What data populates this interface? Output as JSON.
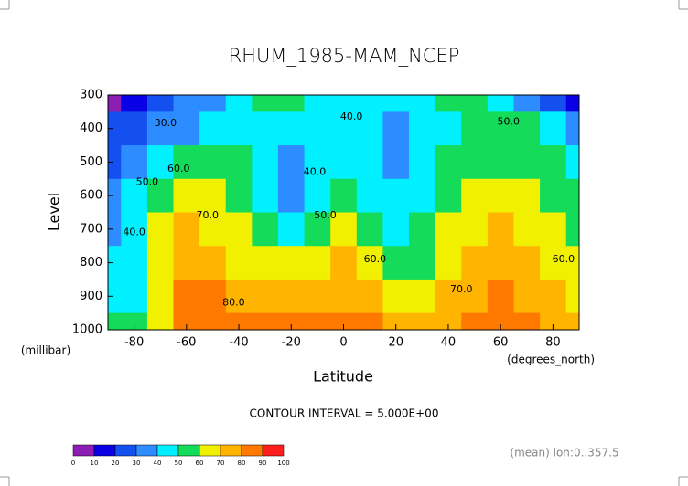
{
  "chart_data": {
    "type": "contour",
    "title": "RHUM_1985-MAM_NCEP",
    "x_label": "Latitude",
    "x_units": "(degrees_north)",
    "y_label": "Level",
    "y_units": "(millibar)",
    "x": [
      -90,
      -80,
      -70,
      -60,
      -50,
      -40,
      -30,
      -20,
      -10,
      0,
      10,
      20,
      30,
      40,
      50,
      60,
      70,
      80,
      90
    ],
    "y": [
      300,
      400,
      500,
      600,
      700,
      800,
      900,
      1000
    ],
    "z": [
      [
        5,
        15,
        25,
        30,
        35,
        40,
        52,
        52,
        45,
        45,
        45,
        40,
        45,
        50,
        52,
        40,
        30,
        20,
        15
      ],
      [
        20,
        25,
        30,
        35,
        40,
        45,
        45,
        40,
        42,
        45,
        40,
        38,
        40,
        45,
        50,
        52,
        50,
        40,
        35
      ],
      [
        25,
        35,
        45,
        55,
        55,
        50,
        42,
        35,
        42,
        48,
        40,
        35,
        42,
        50,
        55,
        55,
        55,
        50,
        45
      ],
      [
        30,
        40,
        55,
        65,
        62,
        55,
        45,
        38,
        45,
        50,
        45,
        40,
        45,
        55,
        60,
        68,
        62,
        58,
        50
      ],
      [
        35,
        40,
        60,
        70,
        68,
        60,
        52,
        48,
        55,
        60,
        55,
        45,
        50,
        60,
        68,
        72,
        68,
        62,
        58
      ],
      [
        40,
        45,
        62,
        78,
        75,
        68,
        62,
        60,
        65,
        70,
        65,
        55,
        58,
        65,
        72,
        75,
        70,
        68,
        65
      ],
      [
        45,
        48,
        65,
        85,
        82,
        78,
        75,
        75,
        75,
        78,
        75,
        65,
        65,
        70,
        78,
        80,
        75,
        70,
        62
      ],
      [
        50,
        52,
        68,
        88,
        85,
        82,
        80,
        80,
        80,
        80,
        80,
        72,
        70,
        76,
        82,
        85,
        80,
        75,
        70
      ]
    ],
    "xlim": [
      -90,
      90
    ],
    "ylim": [
      1000,
      300
    ],
    "xticks": [
      -80,
      -60,
      -40,
      -20,
      0,
      20,
      40,
      60,
      80
    ],
    "yticks": [
      300,
      400,
      500,
      600,
      700,
      800,
      900,
      1000
    ],
    "levels": [
      0,
      10,
      20,
      30,
      40,
      50,
      60,
      70,
      80,
      90,
      100
    ],
    "colors": [
      "#8c1eb4",
      "#0a00e6",
      "#1450f0",
      "#2d8cff",
      "#00f0ff",
      "#14dc5a",
      "#f0f000",
      "#ffb400",
      "#ff7800",
      "#ff1e1e"
    ],
    "contour_labels": [
      {
        "x": -68,
        "y": 385,
        "value": 30,
        "label": "30.0"
      },
      {
        "x": 3,
        "y": 365,
        "value": 40,
        "label": "40.0"
      },
      {
        "x": 63,
        "y": 380,
        "value": 50,
        "label": "50.0"
      },
      {
        "x": -75,
        "y": 560,
        "value": 50,
        "label": "50.0"
      },
      {
        "x": -63,
        "y": 520,
        "value": 60,
        "label": "60.0"
      },
      {
        "x": -80,
        "y": 710,
        "value": 40,
        "label": "40.0"
      },
      {
        "x": -52,
        "y": 660,
        "value": 70,
        "label": "70.0"
      },
      {
        "x": -11,
        "y": 530,
        "value": 40,
        "label": "40.0"
      },
      {
        "x": -7,
        "y": 660,
        "value": 50,
        "label": "50.0"
      },
      {
        "x": 12,
        "y": 790,
        "value": 60,
        "label": "60.0"
      },
      {
        "x": -42,
        "y": 920,
        "value": 80,
        "label": "80.0"
      },
      {
        "x": 45,
        "y": 880,
        "value": 70,
        "label": "70.0"
      },
      {
        "x": 84,
        "y": 790,
        "value": 60,
        "label": "60.0"
      }
    ],
    "contour_interval": "CONTOUR INTERVAL = 5.000E+00",
    "footnote": "(mean) lon:0..357.5"
  }
}
